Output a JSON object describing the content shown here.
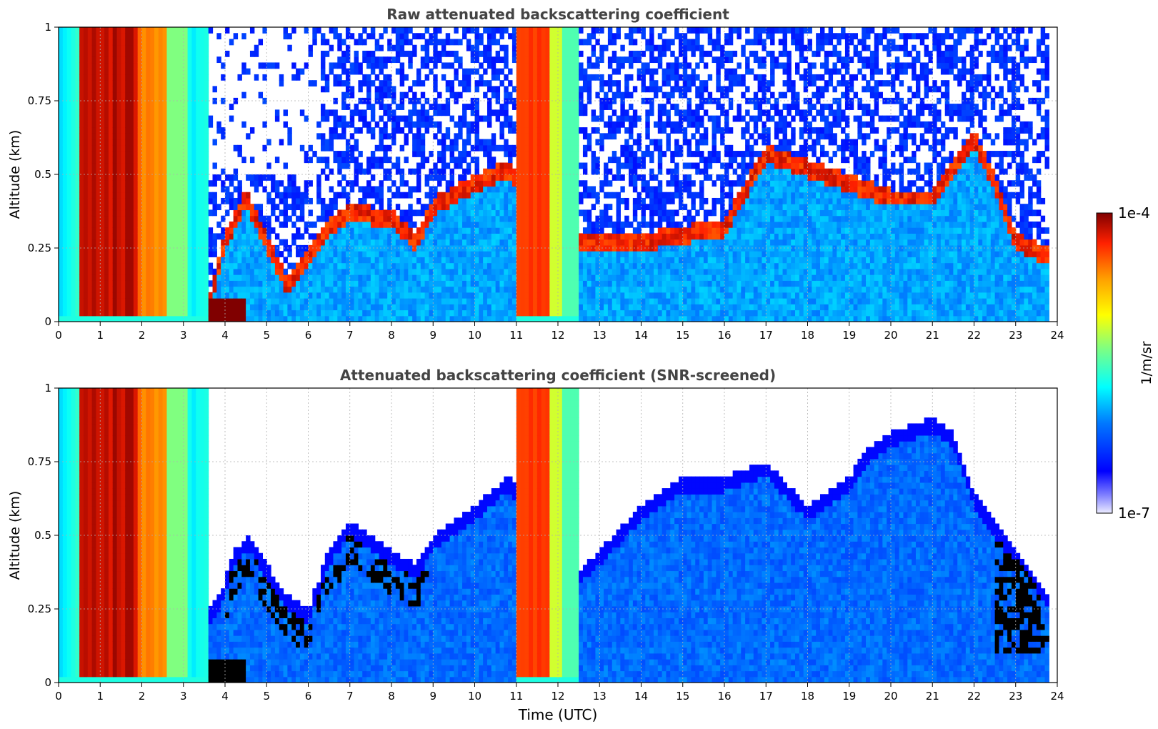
{
  "figure": {
    "colorbar": {
      "label": "1/m/sr",
      "max_label": "1e-4",
      "min_label": "1e-7",
      "scale": "log",
      "colormap": "jet"
    }
  },
  "chart_data": [
    {
      "type": "heatmap",
      "title": "Raw attenuated backscattering coefficient",
      "xlabel": "",
      "ylabel": "Altitude (km)",
      "xlim": [
        0,
        24
      ],
      "ylim": [
        0,
        1
      ],
      "x_ticks": [
        "0",
        "1",
        "2",
        "3",
        "4",
        "5",
        "6",
        "7",
        "8",
        "9",
        "10",
        "11",
        "12",
        "13",
        "14",
        "15",
        "16",
        "17",
        "18",
        "19",
        "20",
        "21",
        "22",
        "23",
        "24"
      ],
      "y_ticks": [
        "0",
        "0.25",
        "0.5",
        "0.75",
        "1"
      ],
      "grid": true,
      "data_end_hour": 23.8,
      "fog_periods_hours": [
        [
          0.0,
          3.6
        ],
        [
          11.0,
          12.5
        ]
      ],
      "cloud_top_km_by_hour": {
        "hours": [
          3.6,
          4.0,
          4.5,
          5.0,
          5.5,
          6.0,
          6.5,
          7.0,
          8.0,
          8.6,
          9.0,
          10.0,
          10.8,
          12.5,
          14.0,
          16.0,
          17.0,
          19.0,
          20.0,
          21.0,
          22.0,
          22.5,
          23.0,
          23.8
        ],
        "values": [
          0.08,
          0.3,
          0.45,
          0.3,
          0.15,
          0.25,
          0.35,
          0.4,
          0.38,
          0.3,
          0.42,
          0.5,
          0.55,
          0.3,
          0.3,
          0.35,
          0.6,
          0.5,
          0.45,
          0.45,
          0.65,
          0.5,
          0.3,
          0.25
        ]
      }
    },
    {
      "type": "heatmap",
      "title": "Attenuated backscattering coefficient (SNR-screened)",
      "xlabel": "Time (UTC)",
      "ylabel": "Altitude (km)",
      "xlim": [
        0,
        24
      ],
      "ylim": [
        0,
        1
      ],
      "x_ticks": [
        "0",
        "1",
        "2",
        "3",
        "4",
        "5",
        "6",
        "7",
        "8",
        "9",
        "10",
        "11",
        "12",
        "13",
        "14",
        "15",
        "16",
        "17",
        "18",
        "19",
        "20",
        "21",
        "22",
        "23",
        "24"
      ],
      "y_ticks": [
        "0",
        "0.25",
        "0.5",
        "0.75",
        "1"
      ],
      "grid": true,
      "data_end_hour": 23.8,
      "fog_periods_hours": [
        [
          0.0,
          3.6
        ],
        [
          11.0,
          12.5
        ]
      ],
      "valid_top_km_by_hour": {
        "hours": [
          3.6,
          3.9,
          4.2,
          4.6,
          5.0,
          5.5,
          6.0,
          6.5,
          7.0,
          8.0,
          8.6,
          9.0,
          10.0,
          10.8,
          12.5,
          13.0,
          14.0,
          15.0,
          16.0,
          17.0,
          18.0,
          19.0,
          19.5,
          20.0,
          21.0,
          21.5,
          22.0,
          22.5,
          23.0,
          23.8
        ],
        "values": [
          0.25,
          0.3,
          0.45,
          0.5,
          0.4,
          0.3,
          0.25,
          0.45,
          0.55,
          0.45,
          0.4,
          0.5,
          0.6,
          0.7,
          0.38,
          0.45,
          0.6,
          0.7,
          0.7,
          0.75,
          0.6,
          0.7,
          0.8,
          0.85,
          0.9,
          0.85,
          0.65,
          0.55,
          0.45,
          0.3
        ]
      }
    }
  ]
}
